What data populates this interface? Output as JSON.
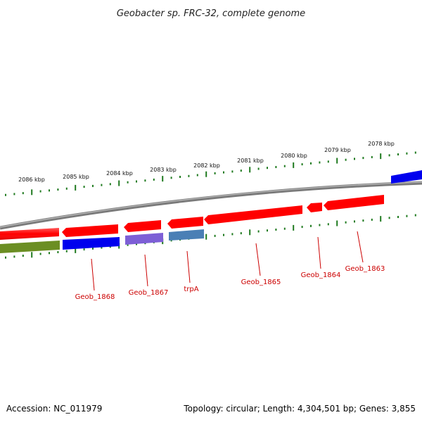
{
  "title": "Geobacter sp. FRC-32, complete genome",
  "footer": {
    "accession": "Accession: NC_011979",
    "topology": "Topology: circular; Length: 4,304,501 bp; Genes: 3,855"
  },
  "colors": {
    "forward_gene": "#ff0000",
    "reverse_gene": "#ff0000",
    "blue_gene": "#0000ee",
    "olive_gene": "#6b8e23",
    "purple_gene": "#7d5fd6",
    "steel_gene": "#4a7fb5",
    "backbone": "#808080",
    "ticks": "#1f7a1f",
    "gene_label": "#cc0000"
  },
  "scale": {
    "ticks": [
      "2086 kbp",
      "2085 kbp",
      "2084 kbp",
      "2083 kbp",
      "2082 kbp",
      "2081 kbp",
      "2080 kbp",
      "2079 kbp",
      "2078 kbp"
    ]
  },
  "genes": [
    {
      "label": "Geob_1868"
    },
    {
      "label": "Geob_1867"
    },
    {
      "label": "trpA"
    },
    {
      "label": "Geob_1865"
    },
    {
      "label": "Geob_1864"
    },
    {
      "label": "Geob_1863"
    }
  ]
}
